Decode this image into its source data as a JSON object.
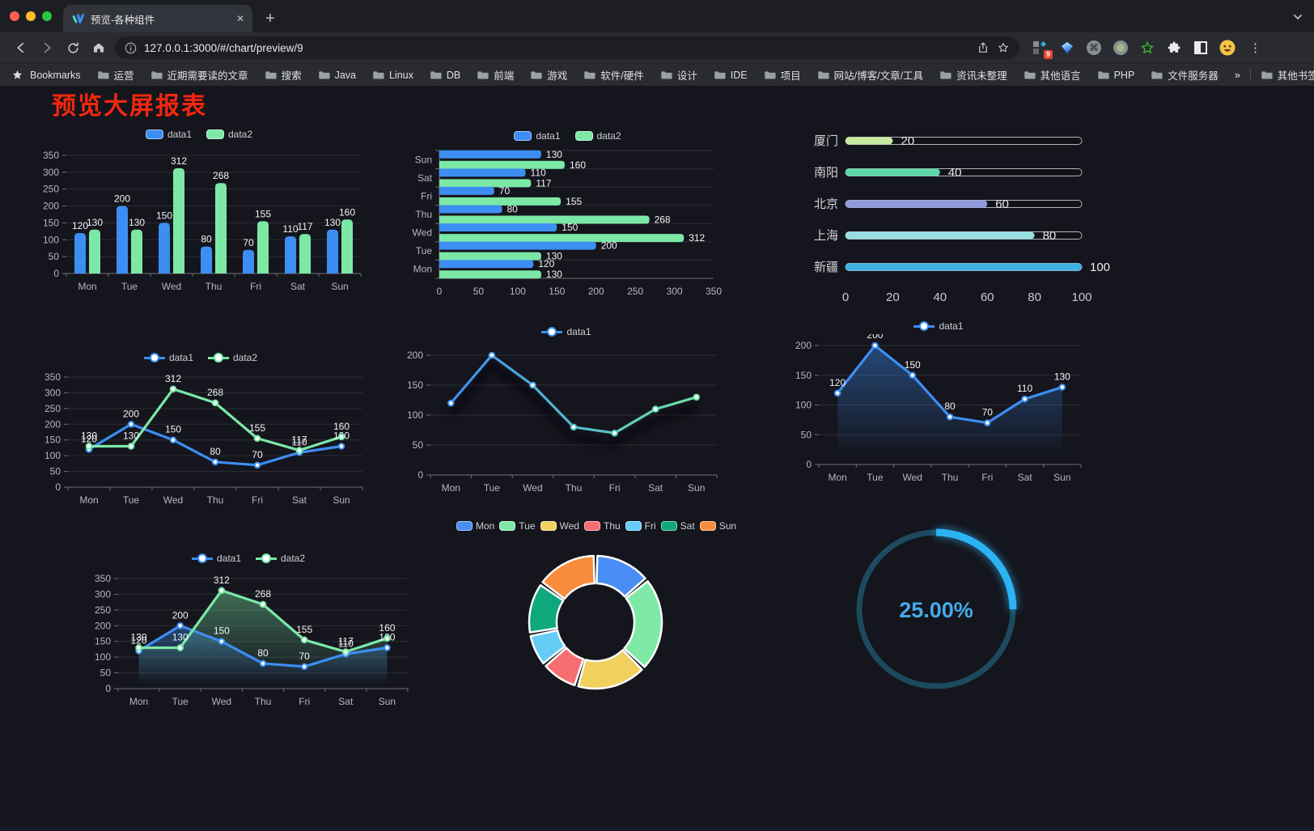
{
  "browser": {
    "tab": {
      "title": "预览-各种组件"
    },
    "glyphs": {
      "tab_close": "✕",
      "new_tab": "+",
      "menu": "⋮",
      "bookmarks_overflow": "»",
      "command": "⌘"
    },
    "url": "127.0.0.1:3000/#/chart/preview/9",
    "extension_badge": "9",
    "bookmarks_label": "Bookmarks",
    "bookmarks": [
      "运营",
      "近期需要读的文章",
      "搜索",
      "Java",
      "Linux",
      "DB",
      "前端",
      "游戏",
      "软件/硬件",
      "设计",
      "IDE",
      "项目",
      "网站/博客/文章/工具",
      "资讯未整理",
      "其他语言",
      "PHP",
      "文件服务器"
    ],
    "other_bookmarks": "其他书签"
  },
  "page": {
    "title": "预览大屏报表",
    "title_color": "#f4270e",
    "background": "#14151d"
  },
  "chart_data": [
    {
      "id": "bar-grouped",
      "type": "bar",
      "orientation": "vertical",
      "categories": [
        "Mon",
        "Tue",
        "Wed",
        "Thu",
        "Fri",
        "Sat",
        "Sun"
      ],
      "series": [
        {
          "name": "data1",
          "color": "#3d8ef2",
          "values": [
            120,
            200,
            150,
            80,
            70,
            110,
            130
          ]
        },
        {
          "name": "data2",
          "color": "#7be8a6",
          "values": [
            130,
            130,
            312,
            268,
            155,
            117,
            160
          ]
        }
      ],
      "yticks": [
        0,
        50,
        100,
        150,
        200,
        250,
        300,
        350
      ],
      "ylim": [
        0,
        350
      ],
      "value_labels": true,
      "legend_position": "top",
      "grid": true
    },
    {
      "id": "bar-horizontal",
      "type": "bar",
      "orientation": "horizontal",
      "categories": [
        "Mon",
        "Tue",
        "Wed",
        "Thu",
        "Fri",
        "Sat",
        "Sun"
      ],
      "series": [
        {
          "name": "data1",
          "color": "#3d8ef2",
          "values": [
            120,
            200,
            150,
            80,
            70,
            110,
            130
          ]
        },
        {
          "name": "data2",
          "color": "#7be8a6",
          "values": [
            130,
            130,
            312,
            268,
            155,
            117,
            160
          ]
        }
      ],
      "xticks": [
        0,
        50,
        100,
        150,
        200,
        250,
        300,
        350
      ],
      "xlim": [
        0,
        350
      ],
      "value_labels": true,
      "legend_position": "top",
      "grid": true
    },
    {
      "id": "progress",
      "type": "bar",
      "orientation": "horizontal",
      "style": "progress",
      "categories": [
        "厦门",
        "南阳",
        "北京",
        "上海",
        "新疆"
      ],
      "values": [
        20,
        40,
        60,
        80,
        100
      ],
      "colors": [
        "#c8e9a1",
        "#5bd9ab",
        "#8f9ade",
        "#96dfe2",
        "#3fb1e3"
      ],
      "xticks": [
        0,
        20,
        40,
        60,
        80,
        100
      ],
      "xlim": [
        0,
        100
      ],
      "value_labels": true,
      "grid": false
    },
    {
      "id": "line-dual",
      "type": "line",
      "categories": [
        "Mon",
        "Tue",
        "Wed",
        "Thu",
        "Fri",
        "Sat",
        "Sun"
      ],
      "series": [
        {
          "name": "data1",
          "color": "#3d8ef2",
          "values": [
            120,
            200,
            150,
            80,
            70,
            110,
            130
          ]
        },
        {
          "name": "data2",
          "color": "#7be8a6",
          "values": [
            130,
            130,
            312,
            268,
            155,
            117,
            160
          ]
        }
      ],
      "yticks": [
        0,
        50,
        100,
        150,
        200,
        250,
        300,
        350
      ],
      "ylim": [
        0,
        350
      ],
      "value_labels": true,
      "legend_position": "top",
      "grid": true
    },
    {
      "id": "line-gradient",
      "type": "line",
      "shadow": true,
      "categories": [
        "Mon",
        "Tue",
        "Wed",
        "Thu",
        "Fri",
        "Sat",
        "Sun"
      ],
      "series": [
        {
          "name": "data1",
          "color": "#3d8ef2",
          "gradient": [
            "#3d8ef2",
            "#6fe3a5"
          ],
          "values": [
            120,
            200,
            150,
            80,
            70,
            110,
            130
          ]
        }
      ],
      "yticks": [
        0,
        50,
        100,
        150,
        200
      ],
      "ylim": [
        0,
        200
      ],
      "value_labels": false,
      "legend_position": "top",
      "grid": true
    },
    {
      "id": "line-area",
      "type": "line",
      "categories": [
        "Mon",
        "Tue",
        "Wed",
        "Thu",
        "Fri",
        "Sat",
        "Sun"
      ],
      "series": [
        {
          "name": "data1",
          "color": "#3d8ef2",
          "area": true,
          "values": [
            120,
            200,
            150,
            80,
            70,
            110,
            130
          ]
        }
      ],
      "yticks": [
        0,
        50,
        100,
        150,
        200
      ],
      "ylim": [
        0,
        200
      ],
      "value_labels": true,
      "legend_position": "top",
      "grid": true
    },
    {
      "id": "line-dual-area",
      "type": "line",
      "categories": [
        "Mon",
        "Tue",
        "Wed",
        "Thu",
        "Fri",
        "Sat",
        "Sun"
      ],
      "series": [
        {
          "name": "data1",
          "color": "#3d8ef2",
          "area": true,
          "values": [
            120,
            200,
            150,
            80,
            70,
            110,
            130
          ]
        },
        {
          "name": "data2",
          "color": "#7be8a6",
          "area": true,
          "values": [
            130,
            130,
            312,
            268,
            155,
            117,
            160
          ]
        }
      ],
      "yticks": [
        0,
        50,
        100,
        150,
        200,
        250,
        300,
        350
      ],
      "ylim": [
        0,
        350
      ],
      "value_labels": true,
      "legend_position": "top",
      "grid": true
    },
    {
      "id": "donut",
      "type": "pie",
      "inner_radius": 48,
      "outer_radius": 82,
      "legend_position": "top",
      "slices": [
        {
          "label": "Mon",
          "value": 120,
          "color": "#4a8df5"
        },
        {
          "label": "Tue",
          "value": 200,
          "color": "#7ee9a6"
        },
        {
          "label": "Wed",
          "value": 150,
          "color": "#f2d05f"
        },
        {
          "label": "Thu",
          "value": 80,
          "color": "#f76e72"
        },
        {
          "label": "Fri",
          "value": 70,
          "color": "#65ccf5"
        },
        {
          "label": "Sat",
          "value": 110,
          "color": "#0ea87d"
        },
        {
          "label": "Sun",
          "value": 130,
          "color": "#f78d3d"
        }
      ]
    },
    {
      "id": "gauge",
      "type": "gauge",
      "value": 25,
      "max": 100,
      "label": "25.00%",
      "color": "#2bb3f3",
      "track_color": "#1d4a5e",
      "text_color": "#46abe8"
    }
  ]
}
